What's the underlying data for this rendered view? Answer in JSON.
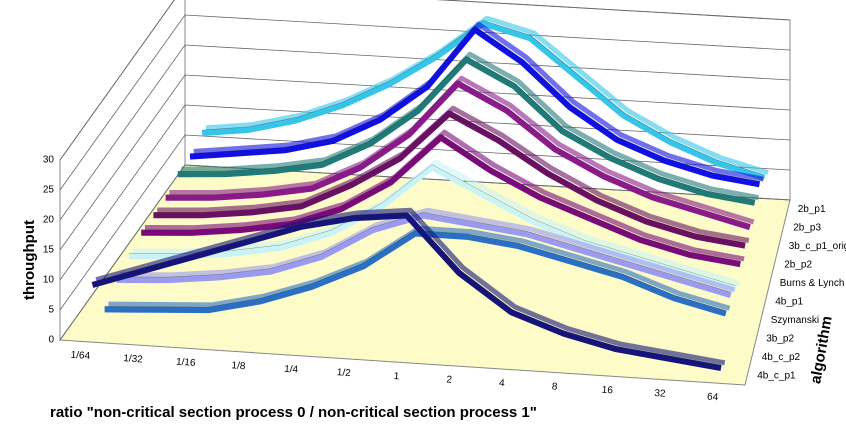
{
  "chart_data": {
    "type": "ribbon3d",
    "y_label": "throughput",
    "x_label": "ratio \"non-critical section process 0 / non-critical section process 1\"",
    "z_label": "algorithm",
    "categories": [
      "1/64",
      "1/32",
      "1/16",
      "1/8",
      "1/4",
      "1/2",
      "1",
      "2",
      "4",
      "8",
      "16",
      "32",
      "64"
    ],
    "ylim": [
      0,
      30
    ],
    "yticks": [
      0,
      5,
      10,
      15,
      20,
      25,
      30
    ],
    "grid": true,
    "series": [
      {
        "name": "4b_c_p1",
        "color": "#14147a",
        "values": [
          8,
          11,
          14,
          17,
          20,
          22,
          23,
          14,
          8,
          5,
          3,
          2,
          1
        ]
      },
      {
        "name": "4b_c_p2",
        "color": "#2a6fc4",
        "values": [
          1,
          1.5,
          2,
          4,
          7,
          11,
          17,
          17,
          16,
          14,
          12,
          9,
          7
        ]
      },
      {
        "name": "3b_p2",
        "color": "#9a9aee",
        "values": [
          3,
          3.5,
          4.5,
          6,
          9,
          14,
          17,
          16,
          15,
          13,
          11,
          9,
          7
        ]
      },
      {
        "name": "Szymanski",
        "color": "#c8f4f8",
        "values": [
          4,
          4.5,
          5.5,
          7,
          10,
          15,
          22,
          18,
          14,
          11,
          9,
          7,
          5
        ]
      },
      {
        "name": "4b_p1",
        "color": "#7a0a7a",
        "values": [
          5,
          5.5,
          6.5,
          8,
          11,
          16,
          24,
          19,
          15,
          12,
          9,
          7,
          6
        ]
      },
      {
        "name": "Burns & Lynch",
        "color": "#6a1062",
        "values": [
          5,
          5.5,
          6.5,
          8,
          12,
          17,
          25,
          21,
          16,
          12,
          9,
          7,
          6
        ]
      },
      {
        "name": "2b_p2",
        "color": "#8a1a8a",
        "values": [
          5,
          5.5,
          6.5,
          8,
          12,
          18,
          27,
          23,
          17,
          13,
          10,
          8,
          6
        ]
      },
      {
        "name": "3b_c_p1_orig",
        "color": "#1f7a78",
        "values": [
          6,
          6.5,
          7.5,
          9,
          13,
          19,
          28,
          24,
          17,
          13,
          10,
          8,
          7
        ]
      },
      {
        "name": "2b_p3",
        "color": "#1010e0",
        "values": [
          6,
          7,
          8,
          10,
          14,
          20,
          30,
          25,
          18,
          13,
          10,
          8,
          7
        ]
      },
      {
        "name": "2b_p1",
        "color": "#36c4e8",
        "values": [
          7,
          8,
          10,
          13,
          17,
          22,
          28,
          26,
          20,
          14,
          10,
          7,
          5
        ]
      }
    ]
  }
}
